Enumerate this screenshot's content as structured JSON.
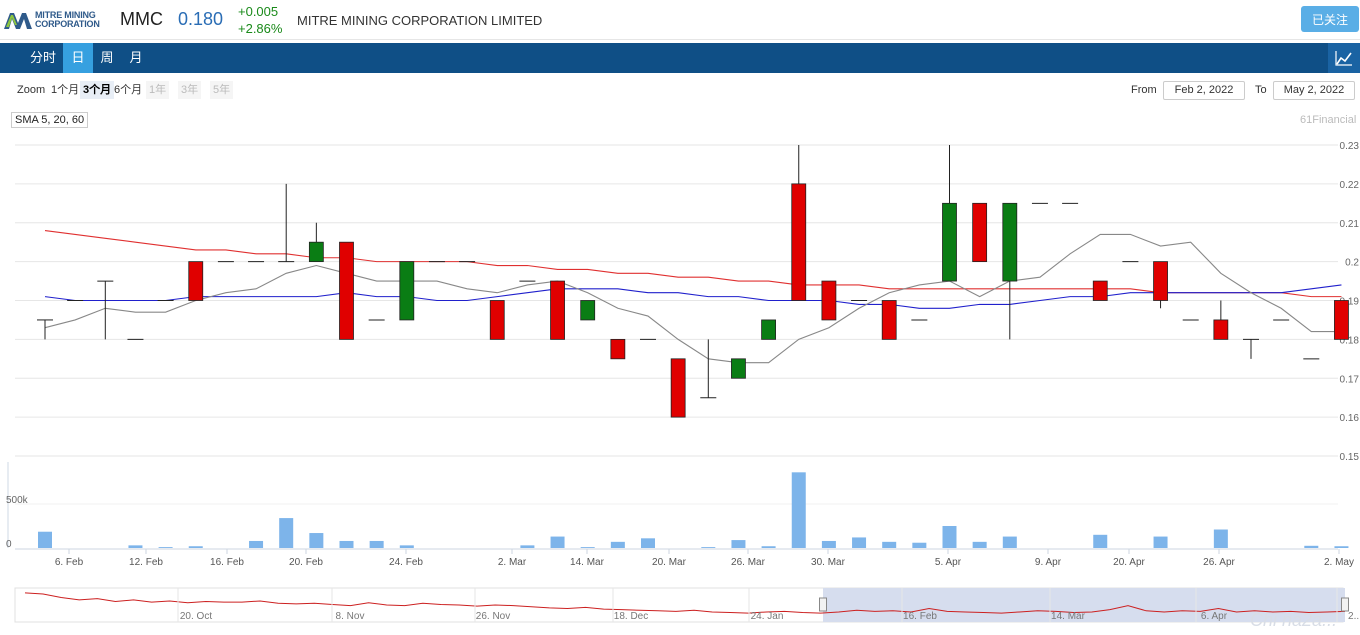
{
  "header": {
    "logo_line1": "MITRE MINING",
    "logo_line2": "CORPORATION",
    "ticker": "MMC",
    "price": "0.180",
    "change_abs": "+0.005",
    "change_pct": "+2.86%",
    "company_name": "MITRE MINING CORPORATION LIMITED",
    "follow_label": "已关注"
  },
  "tabs": [
    "分时",
    "日",
    "周",
    "月"
  ],
  "active_tab": "日",
  "zoom": {
    "label": "Zoom",
    "options": [
      "1个月",
      "3个月",
      "6个月",
      "1年",
      "3年",
      "5年"
    ],
    "selected": "3个月",
    "disabled": [
      "1年",
      "3年",
      "5年"
    ]
  },
  "range": {
    "from_label": "From",
    "from_value": "Feb 2, 2022",
    "to_label": "To",
    "to_value": "May 2, 2022"
  },
  "sma_label": "SMA 5, 20, 60",
  "credit": "61Financial",
  "watermark": "Chi na2a...",
  "colors": {
    "up": "#0a7d14",
    "down": "#e00000",
    "sma5": "#888888",
    "sma20": "#2020cc",
    "sma60": "#e03030",
    "volume": "#7db4ea",
    "navigator": "#cc2020"
  },
  "chart_data": {
    "type": "candlestick",
    "price_axis": {
      "ticks": [
        "0.15",
        "0.16",
        "0.17",
        "0.18",
        "0.19",
        "0.2",
        "0.21",
        "0.22",
        "0.23"
      ],
      "range": [
        0.15,
        0.23
      ]
    },
    "volume_axis": {
      "ticks": [
        "0",
        "500k"
      ],
      "range": [
        0,
        1000000
      ]
    },
    "x_labels": [
      "6. Feb",
      "12. Feb",
      "16. Feb",
      "20. Feb",
      "24. Feb",
      "2. Mar",
      "14. Mar",
      "20. Mar",
      "26. Mar",
      "30. Mar",
      "5. Apr",
      "9. Apr",
      "20. Apr",
      "26. Apr",
      "2. May"
    ],
    "candles": [
      {
        "o": 0.185,
        "h": 0.185,
        "l": 0.18,
        "c": 0.185
      },
      {
        "o": 0.19,
        "h": 0.19,
        "l": 0.19,
        "c": 0.19
      },
      {
        "o": 0.195,
        "h": 0.195,
        "l": 0.18,
        "c": 0.195
      },
      {
        "o": 0.18,
        "h": 0.18,
        "l": 0.18,
        "c": 0.18
      },
      {
        "o": 0.19,
        "h": 0.19,
        "l": 0.19,
        "c": 0.19
      },
      {
        "o": 0.2,
        "h": 0.2,
        "l": 0.19,
        "c": 0.19
      },
      {
        "o": 0.2,
        "h": 0.2,
        "l": 0.2,
        "c": 0.2
      },
      {
        "o": 0.2,
        "h": 0.2,
        "l": 0.2,
        "c": 0.2
      },
      {
        "o": 0.2,
        "h": 0.22,
        "l": 0.2,
        "c": 0.2
      },
      {
        "o": 0.2,
        "h": 0.21,
        "l": 0.2,
        "c": 0.205
      },
      {
        "o": 0.205,
        "h": 0.205,
        "l": 0.18,
        "c": 0.18
      },
      {
        "o": 0.185,
        "h": 0.185,
        "l": 0.185,
        "c": 0.185
      },
      {
        "o": 0.185,
        "h": 0.2,
        "l": 0.185,
        "c": 0.2
      },
      {
        "o": 0.2,
        "h": 0.2,
        "l": 0.2,
        "c": 0.2
      },
      {
        "o": 0.2,
        "h": 0.2,
        "l": 0.2,
        "c": 0.2
      },
      {
        "o": 0.19,
        "h": 0.19,
        "l": 0.18,
        "c": 0.18
      },
      {
        "o": 0.195,
        "h": 0.195,
        "l": 0.195,
        "c": 0.195
      },
      {
        "o": 0.195,
        "h": 0.195,
        "l": 0.18,
        "c": 0.18
      },
      {
        "o": 0.185,
        "h": 0.19,
        "l": 0.185,
        "c": 0.19
      },
      {
        "o": 0.18,
        "h": 0.18,
        "l": 0.175,
        "c": 0.175
      },
      {
        "o": 0.18,
        "h": 0.18,
        "l": 0.18,
        "c": 0.18
      },
      {
        "o": 0.175,
        "h": 0.175,
        "l": 0.16,
        "c": 0.16
      },
      {
        "o": 0.165,
        "h": 0.18,
        "l": 0.165,
        "c": 0.165
      },
      {
        "o": 0.17,
        "h": 0.175,
        "l": 0.17,
        "c": 0.175
      },
      {
        "o": 0.18,
        "h": 0.185,
        "l": 0.18,
        "c": 0.185
      },
      {
        "o": 0.22,
        "h": 0.23,
        "l": 0.19,
        "c": 0.19
      },
      {
        "o": 0.195,
        "h": 0.195,
        "l": 0.185,
        "c": 0.185
      },
      {
        "o": 0.19,
        "h": 0.19,
        "l": 0.19,
        "c": 0.19
      },
      {
        "o": 0.19,
        "h": 0.19,
        "l": 0.18,
        "c": 0.18
      },
      {
        "o": 0.185,
        "h": 0.185,
        "l": 0.185,
        "c": 0.185
      },
      {
        "o": 0.195,
        "h": 0.23,
        "l": 0.195,
        "c": 0.215
      },
      {
        "o": 0.215,
        "h": 0.215,
        "l": 0.2,
        "c": 0.2
      },
      {
        "o": 0.195,
        "h": 0.215,
        "l": 0.18,
        "c": 0.215
      },
      {
        "o": 0.215,
        "h": 0.215,
        "l": 0.215,
        "c": 0.215
      },
      {
        "o": 0.215,
        "h": 0.215,
        "l": 0.215,
        "c": 0.215
      },
      {
        "o": 0.195,
        "h": 0.195,
        "l": 0.19,
        "c": 0.19
      },
      {
        "o": 0.2,
        "h": 0.2,
        "l": 0.2,
        "c": 0.2
      },
      {
        "o": 0.2,
        "h": 0.2,
        "l": 0.188,
        "c": 0.19
      },
      {
        "o": 0.185,
        "h": 0.185,
        "l": 0.185,
        "c": 0.185
      },
      {
        "o": 0.185,
        "h": 0.19,
        "l": 0.18,
        "c": 0.18
      },
      {
        "o": 0.18,
        "h": 0.18,
        "l": 0.175,
        "c": 0.18
      },
      {
        "o": 0.185,
        "h": 0.185,
        "l": 0.185,
        "c": 0.185
      },
      {
        "o": 0.175,
        "h": 0.175,
        "l": 0.175,
        "c": 0.175
      },
      {
        "o": 0.19,
        "h": 0.19,
        "l": 0.18,
        "c": 0.18
      }
    ],
    "volume": [
      185000,
      0,
      0,
      30000,
      10000,
      20000,
      0,
      80000,
      340000,
      170000,
      80000,
      80000,
      30000,
      0,
      0,
      0,
      30000,
      130000,
      10000,
      70000,
      110000,
      0,
      10000,
      90000,
      20000,
      860000,
      80000,
      120000,
      70000,
      60000,
      250000,
      70000,
      130000,
      0,
      0,
      150000,
      0,
      130000,
      0,
      210000,
      0,
      0,
      25000,
      20000
    ],
    "sma5": [
      0.183,
      0.185,
      0.188,
      0.187,
      0.187,
      0.19,
      0.192,
      0.193,
      0.197,
      0.199,
      0.197,
      0.195,
      0.195,
      0.195,
      0.193,
      0.192,
      0.194,
      0.195,
      0.192,
      0.188,
      0.186,
      0.18,
      0.175,
      0.174,
      0.174,
      0.18,
      0.183,
      0.188,
      0.192,
      0.194,
      0.195,
      0.191,
      0.195,
      0.196,
      0.202,
      0.207,
      0.207,
      0.204,
      0.205,
      0.197,
      0.192,
      0.188,
      0.182,
      0.182
    ],
    "sma20": [
      0.191,
      0.19,
      0.19,
      0.19,
      0.19,
      0.191,
      0.191,
      0.191,
      0.191,
      0.191,
      0.192,
      0.191,
      0.191,
      0.19,
      0.19,
      0.191,
      0.192,
      0.193,
      0.193,
      0.193,
      0.192,
      0.192,
      0.191,
      0.191,
      0.19,
      0.19,
      0.19,
      0.189,
      0.189,
      0.188,
      0.188,
      0.189,
      0.189,
      0.19,
      0.191,
      0.191,
      0.192,
      0.192,
      0.192,
      0.192,
      0.192,
      0.192,
      0.193,
      0.194
    ],
    "sma60": [
      0.208,
      0.207,
      0.206,
      0.205,
      0.204,
      0.203,
      0.203,
      0.202,
      0.202,
      0.201,
      0.201,
      0.2,
      0.2,
      0.2,
      0.2,
      0.199,
      0.199,
      0.198,
      0.198,
      0.197,
      0.197,
      0.196,
      0.196,
      0.195,
      0.195,
      0.194,
      0.194,
      0.194,
      0.193,
      0.193,
      0.193,
      0.193,
      0.193,
      0.193,
      0.193,
      0.193,
      0.193,
      0.192,
      0.192,
      0.192,
      0.192,
      0.192,
      0.191,
      0.191
    ],
    "navigator": {
      "labels": [
        "20. Oct",
        "8. Nov",
        "26. Nov",
        "18. Dec",
        "24. Jan",
        "16. Feb",
        "14. Mar",
        "6. Apr",
        "2..."
      ],
      "series": [
        0.23,
        0.228,
        0.222,
        0.218,
        0.22,
        0.215,
        0.218,
        0.214,
        0.216,
        0.213,
        0.215,
        0.214,
        0.214,
        0.216,
        0.212,
        0.211,
        0.212,
        0.21,
        0.208,
        0.213,
        0.209,
        0.208,
        0.212,
        0.21,
        0.209,
        0.207,
        0.209,
        0.208,
        0.206,
        0.204,
        0.203,
        0.205,
        0.202,
        0.201,
        0.2,
        0.199,
        0.198,
        0.2,
        0.197,
        0.196,
        0.195,
        0.197,
        0.198,
        0.196,
        0.195,
        0.197,
        0.2,
        0.198,
        0.199,
        0.197,
        0.203,
        0.198,
        0.197,
        0.196,
        0.195,
        0.197,
        0.199,
        0.198,
        0.196,
        0.197,
        0.201,
        0.208,
        0.199,
        0.197,
        0.199,
        0.198,
        0.203,
        0.197,
        0.199,
        0.197,
        0.198,
        0.196,
        0.197,
        0.198
      ],
      "selection": {
        "from": "Feb 2, 2022",
        "to": "May 2, 2022"
      }
    }
  }
}
